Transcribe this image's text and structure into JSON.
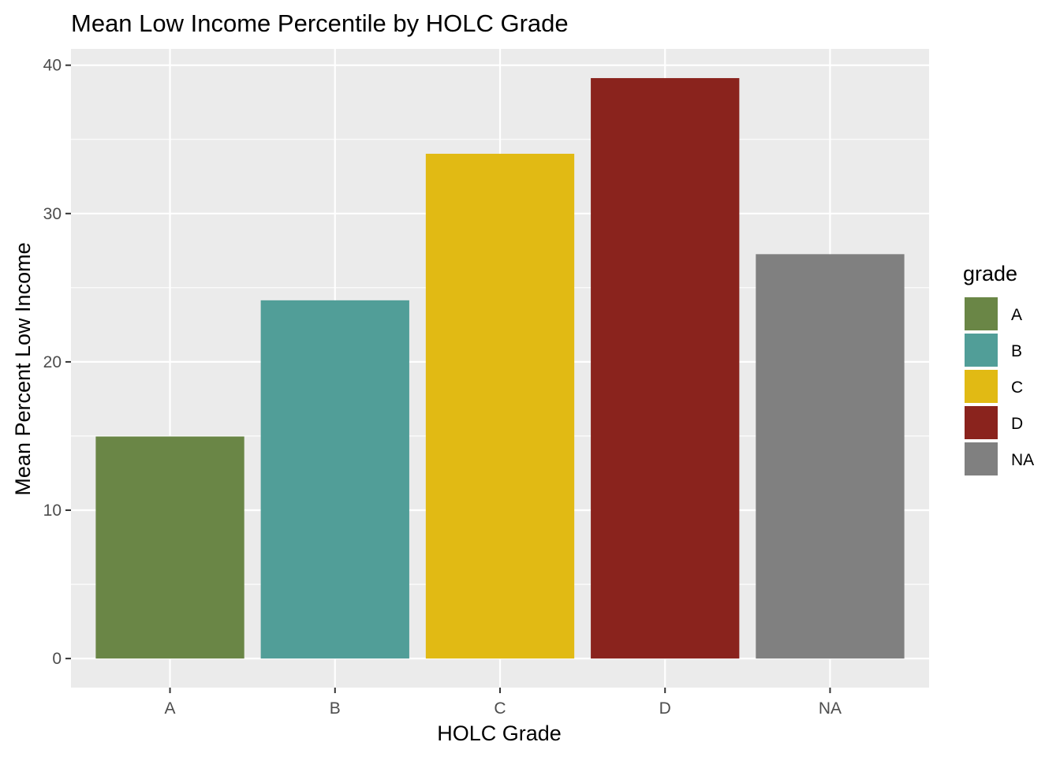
{
  "chart_data": {
    "type": "bar",
    "title": "Mean Low Income Percentile by HOLC Grade",
    "xlabel": "HOLC Grade",
    "ylabel": "Mean Percent Low Income",
    "categories": [
      "A",
      "B",
      "C",
      "D",
      "NA"
    ],
    "values": [
      14.97,
      24.15,
      34.03,
      39.13,
      27.26
    ],
    "colors": [
      "#6a8646",
      "#519e98",
      "#e1ba14",
      "#8a231d",
      "#808080"
    ],
    "ylim": [
      -1.96,
      41.1
    ],
    "yticks": [
      0,
      10,
      20,
      30,
      40
    ],
    "grid": true,
    "panel_background": "#ebebeb",
    "legend": {
      "title": "grade",
      "position": "right",
      "items": [
        {
          "label": "A",
          "color": "#6a8646"
        },
        {
          "label": "B",
          "color": "#519e98"
        },
        {
          "label": "C",
          "color": "#e1ba14"
        },
        {
          "label": "D",
          "color": "#8a231d"
        },
        {
          "label": "NA",
          "color": "#808080"
        }
      ]
    }
  }
}
